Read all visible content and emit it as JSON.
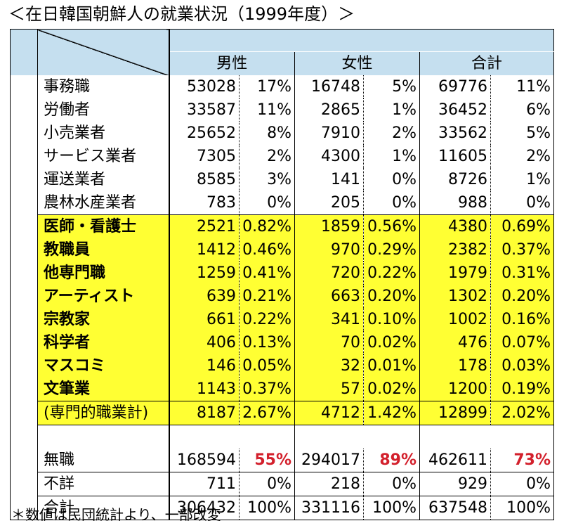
{
  "title": "＜在日韓国朝鮮人の就業状況（1999年度）＞",
  "headers": {
    "male": "男性",
    "female": "女性",
    "total": "合計"
  },
  "rows_top": [
    {
      "label": "事務職",
      "m": "53028",
      "mp": "17%",
      "f": "16748",
      "fp": "5%",
      "t": "69776",
      "tp": "11%"
    },
    {
      "label": "労働者",
      "m": "33587",
      "mp": "11%",
      "f": "2865",
      "fp": "1%",
      "t": "36452",
      "tp": "6%"
    },
    {
      "label": "小売業者",
      "m": "25652",
      "mp": "8%",
      "f": "7910",
      "fp": "2%",
      "t": "33562",
      "tp": "5%"
    },
    {
      "label": "サービス業者",
      "m": "7305",
      "mp": "2%",
      "f": "4300",
      "fp": "1%",
      "t": "11605",
      "tp": "2%"
    },
    {
      "label": "運送業者",
      "m": "8585",
      "mp": "3%",
      "f": "141",
      "fp": "0%",
      "t": "8726",
      "tp": "1%"
    },
    {
      "label": "農林水産業者",
      "m": "783",
      "mp": "0%",
      "f": "205",
      "fp": "0%",
      "t": "988",
      "tp": "0%"
    }
  ],
  "rows_prof": [
    {
      "label": "医師・看護士",
      "m": "2521",
      "mp": "0.82%",
      "f": "1859",
      "fp": "0.56%",
      "t": "4380",
      "tp": "0.69%"
    },
    {
      "label": "教職員",
      "m": "1412",
      "mp": "0.46%",
      "f": "970",
      "fp": "0.29%",
      "t": "2382",
      "tp": "0.37%"
    },
    {
      "label": "他専門職",
      "m": "1259",
      "mp": "0.41%",
      "f": "720",
      "fp": "0.22%",
      "t": "1979",
      "tp": "0.31%"
    },
    {
      "label": "アーティスト",
      "m": "639",
      "mp": "0.21%",
      "f": "663",
      "fp": "0.20%",
      "t": "1302",
      "tp": "0.20%"
    },
    {
      "label": "宗教家",
      "m": "661",
      "mp": "0.22%",
      "f": "341",
      "fp": "0.10%",
      "t": "1002",
      "tp": "0.16%"
    },
    {
      "label": "科学者",
      "m": "406",
      "mp": "0.13%",
      "f": "70",
      "fp": "0.02%",
      "t": "476",
      "tp": "0.07%"
    },
    {
      "label": "マスコミ",
      "m": "146",
      "mp": "0.05%",
      "f": "32",
      "fp": "0.01%",
      "t": "178",
      "tp": "0.03%"
    },
    {
      "label": "文筆業",
      "m": "1143",
      "mp": "0.37%",
      "f": "57",
      "fp": "0.02%",
      "t": "1200",
      "tp": "0.19%"
    }
  ],
  "subtotal": {
    "label": "(専門的職業計)",
    "m": "8187",
    "mp": "2.67%",
    "f": "4712",
    "fp": "1.42%",
    "t": "12899",
    "tp": "2.02%"
  },
  "unemployed": {
    "label": "無職",
    "m": "168594",
    "mp": "55%",
    "f": "294017",
    "fp": "89%",
    "t": "462611",
    "tp": "73%"
  },
  "unknown": {
    "label": "不詳",
    "m": "711",
    "mp": "0%",
    "f": "218",
    "fp": "0%",
    "t": "929",
    "tp": "0%"
  },
  "grand_total": {
    "label": "合計",
    "m": "306432",
    "mp": "100%",
    "f": "331116",
    "fp": "100%",
    "t": "637548",
    "tp": "100%"
  },
  "footnote": "＊数値は民団統計より、一部改変",
  "colors": {
    "header": "#c5dfef",
    "highlight": "#ffff33",
    "emphasis": "#d3202c"
  }
}
